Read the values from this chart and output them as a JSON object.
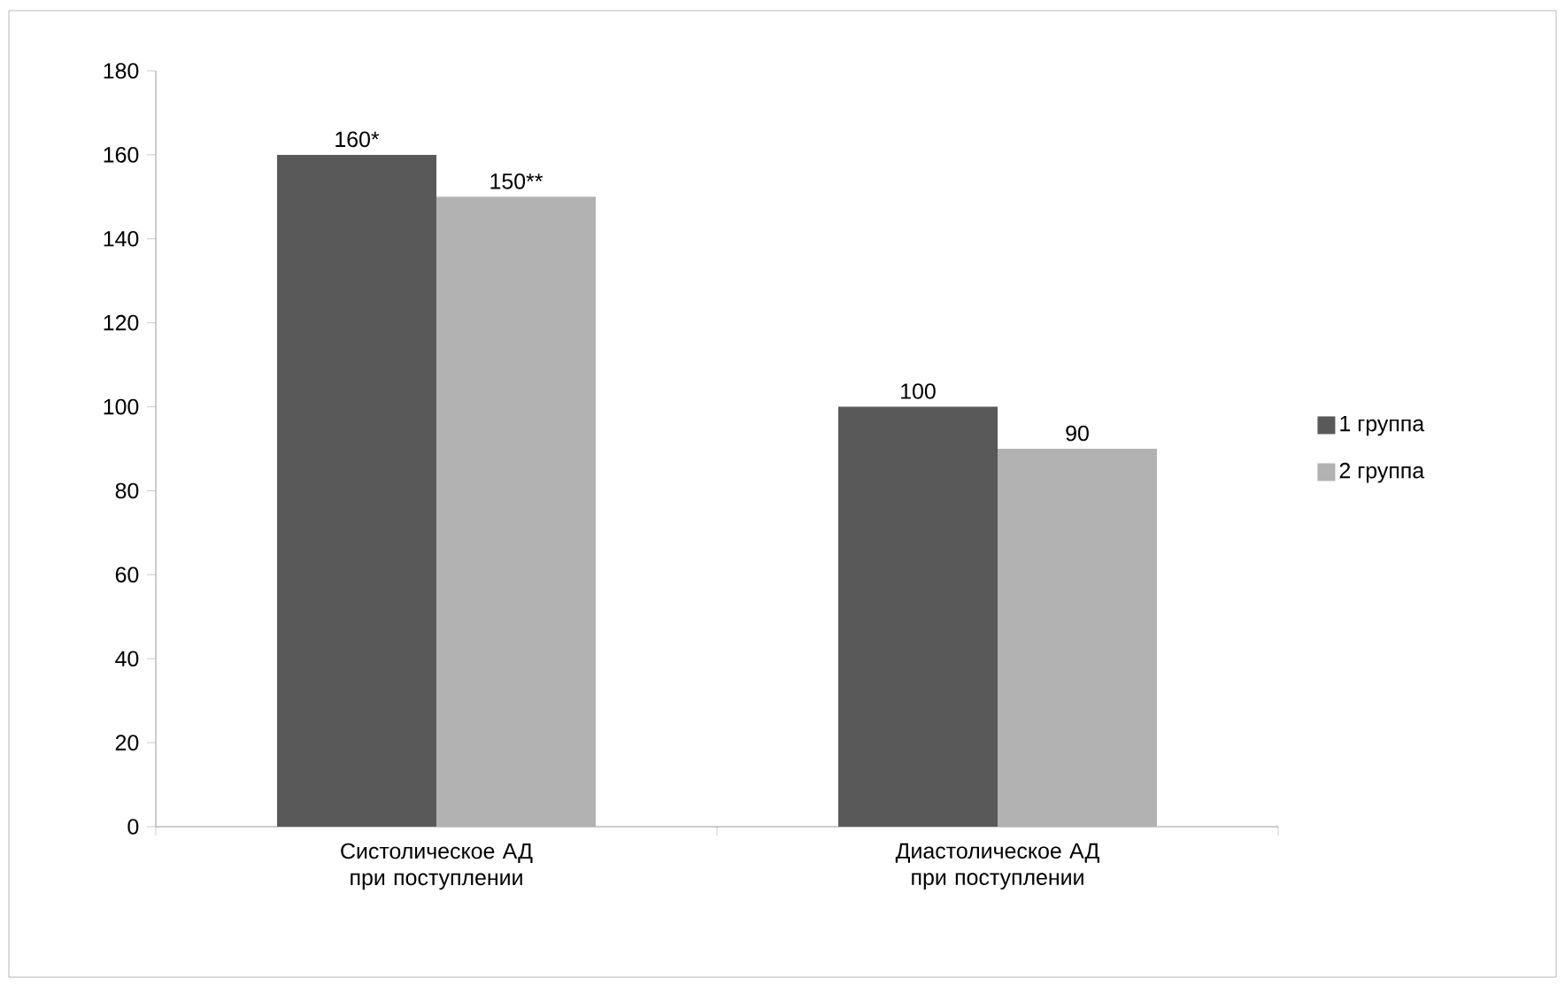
{
  "chart_data": {
    "type": "bar",
    "categories": [
      "Систолическое АД при поступлении",
      "Диастолическое АД при поступлении"
    ],
    "series": [
      {
        "name": "1 группа",
        "color": "#595959",
        "values": [
          160,
          100
        ],
        "value_labels": [
          "160*",
          "100"
        ]
      },
      {
        "name": "2 группа",
        "color": "#b2b2b2",
        "values": [
          150,
          90
        ],
        "value_labels": [
          "150**",
          "90"
        ]
      }
    ],
    "ylim": [
      0,
      180
    ],
    "yticks": [
      0,
      20,
      40,
      60,
      80,
      100,
      120,
      140,
      160,
      180
    ],
    "grid": false,
    "legend": "right"
  }
}
